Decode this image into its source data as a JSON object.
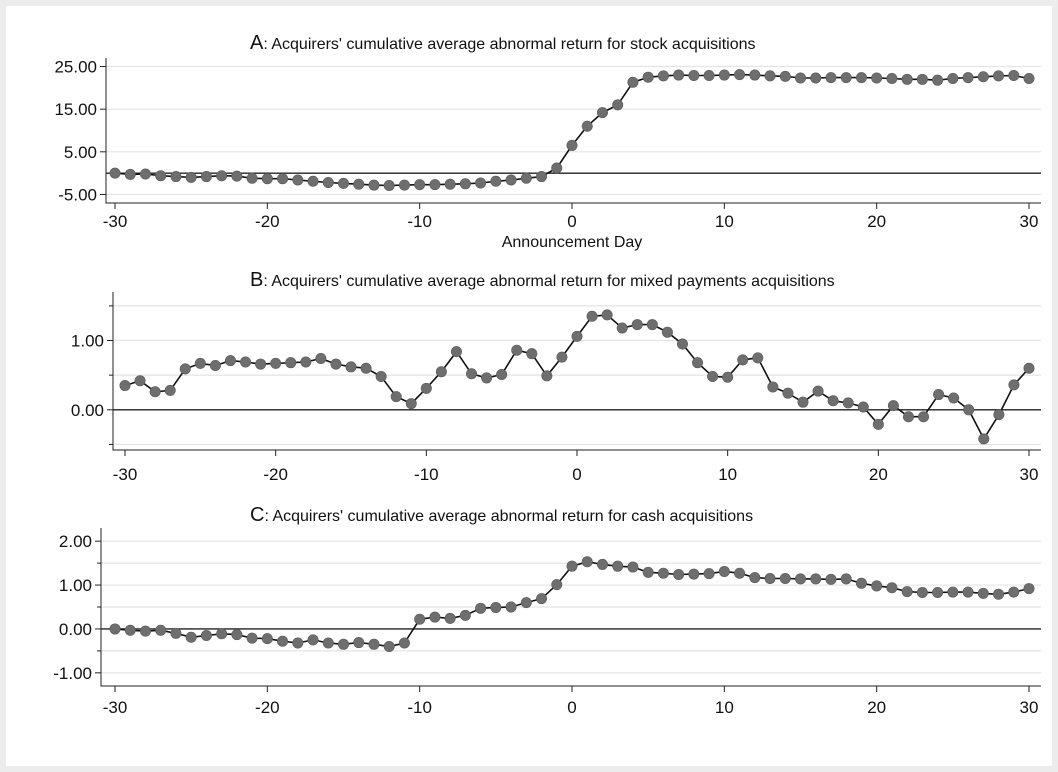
{
  "chart_data": [
    {
      "type": "line",
      "title_letter": "A",
      "title_rest": ": Acquirers' cumulative average abnormal return for stock acquisitions",
      "xlabel": "Announcement Day",
      "ylabel": "",
      "xlim": [
        -30,
        30
      ],
      "ylim": [
        -7,
        27
      ],
      "yticks": [
        "25.00",
        "15.00",
        "5.00",
        "-5.00"
      ],
      "ytick_values": [
        25,
        15,
        5,
        -5
      ],
      "xticks": [
        "-30",
        "-20",
        "-10",
        "0",
        "10",
        "20",
        "30"
      ],
      "xtick_values": [
        -30,
        -20,
        -10,
        0,
        10,
        20,
        30
      ],
      "grid": true,
      "baseline": 0,
      "x": [
        -30,
        -29,
        -28,
        -27,
        -26,
        -25,
        -24,
        -23,
        -22,
        -21,
        -20,
        -19,
        -18,
        -17,
        -16,
        -15,
        -14,
        -13,
        -12,
        -11,
        -10,
        -9,
        -8,
        -7,
        -6,
        -5,
        -4,
        -3,
        -2,
        -1,
        0,
        1,
        2,
        3,
        4,
        5,
        6,
        7,
        8,
        9,
        10,
        11,
        12,
        13,
        14,
        15,
        16,
        17,
        18,
        19,
        20,
        21,
        22,
        23,
        24,
        25,
        26,
        27,
        28,
        29,
        30
      ],
      "values": [
        0.0,
        -0.3,
        -0.2,
        -0.6,
        -0.8,
        -1.0,
        -0.8,
        -0.6,
        -0.7,
        -1.2,
        -1.3,
        -1.3,
        -1.6,
        -1.9,
        -2.2,
        -2.4,
        -2.6,
        -2.8,
        -2.9,
        -2.8,
        -2.7,
        -2.7,
        -2.6,
        -2.5,
        -2.3,
        -1.9,
        -1.6,
        -1.2,
        -0.8,
        1.2,
        6.5,
        11.0,
        14.2,
        16.0,
        21.3,
        22.5,
        22.8,
        23.0,
        22.9,
        22.9,
        23.0,
        23.1,
        23.0,
        22.8,
        22.7,
        22.3,
        22.3,
        22.4,
        22.4,
        22.4,
        22.3,
        22.2,
        22.0,
        22.0,
        21.8,
        22.2,
        22.4,
        22.6,
        22.8,
        22.9,
        22.2
      ]
    },
    {
      "type": "line",
      "title_letter": "B",
      "title_rest": ": Acquirers' cumulative average abnormal return for mixed payments acquisitions",
      "xlabel": "",
      "ylabel": "",
      "xlim": [
        -30,
        30
      ],
      "ylim": [
        -0.58,
        1.7
      ],
      "yticks": [
        "1.00",
        "0.00"
      ],
      "ytick_values": [
        1,
        0
      ],
      "grid_values": [
        1.5,
        1.0,
        0.5,
        0.0,
        -0.5
      ],
      "xticks": [
        "-30",
        "-20",
        "-10",
        "0",
        "10",
        "20",
        "30"
      ],
      "xtick_values": [
        -30,
        -20,
        -10,
        0,
        10,
        20,
        30
      ],
      "grid": true,
      "baseline": 0,
      "x": [
        -30,
        -29,
        -28,
        -27,
        -26,
        -25,
        -24,
        -23,
        -22,
        -21,
        -20,
        -19,
        -18,
        -17,
        -16,
        -15,
        -14,
        -13,
        -12,
        -11,
        -10,
        -9,
        -8,
        -7,
        -6,
        -5,
        -4,
        -3,
        -2,
        -1,
        0,
        1,
        2,
        3,
        4,
        5,
        6,
        7,
        8,
        9,
        10,
        11,
        12,
        13,
        14,
        15,
        16,
        17,
        18,
        19,
        20,
        21,
        22,
        23,
        24,
        25,
        26,
        27,
        28,
        29,
        30
      ],
      "values": [
        0.35,
        0.42,
        0.26,
        0.28,
        0.59,
        0.67,
        0.64,
        0.71,
        0.69,
        0.66,
        0.67,
        0.68,
        0.69,
        0.74,
        0.66,
        0.62,
        0.6,
        0.48,
        0.19,
        0.09,
        0.31,
        0.55,
        0.84,
        0.52,
        0.46,
        0.51,
        0.86,
        0.81,
        0.49,
        0.76,
        1.06,
        1.35,
        1.37,
        1.18,
        1.23,
        1.23,
        1.12,
        0.95,
        0.68,
        0.48,
        0.47,
        0.72,
        0.75,
        0.33,
        0.24,
        0.11,
        0.27,
        0.13,
        0.1,
        0.04,
        -0.21,
        0.06,
        -0.1,
        -0.1,
        0.22,
        0.17,
        0.0,
        -0.42,
        -0.07,
        0.36,
        0.6
      ]
    },
    {
      "type": "line",
      "title_letter": "C",
      "title_rest": ": Acquirers' cumulative average abnormal return for cash acquisitions",
      "xlabel": "",
      "ylabel": "",
      "xlim": [
        -30,
        30
      ],
      "ylim": [
        -1.3,
        2.3
      ],
      "yticks": [
        "2.00",
        "1.00",
        "0.00",
        "-1.00"
      ],
      "ytick_values": [
        2,
        1,
        0,
        -1
      ],
      "grid_values": [
        2.0,
        1.5,
        1.0,
        0.5,
        0.0,
        -0.5,
        -1.0
      ],
      "xticks": [
        "-30",
        "-20",
        "-10",
        "0",
        "10",
        "20",
        "30"
      ],
      "xtick_values": [
        -30,
        -20,
        -10,
        0,
        10,
        20,
        30
      ],
      "grid": true,
      "baseline": 0,
      "x": [
        -30,
        -29,
        -28,
        -27,
        -26,
        -25,
        -24,
        -23,
        -22,
        -21,
        -20,
        -19,
        -18,
        -17,
        -16,
        -15,
        -14,
        -13,
        -12,
        -11,
        -10,
        -9,
        -8,
        -7,
        -6,
        -5,
        -4,
        -3,
        -2,
        -1,
        0,
        1,
        2,
        3,
        4,
        5,
        6,
        7,
        8,
        9,
        10,
        11,
        12,
        13,
        14,
        15,
        16,
        17,
        18,
        19,
        20,
        21,
        22,
        23,
        24,
        25,
        26,
        27,
        28,
        29,
        30
      ],
      "values": [
        0.0,
        -0.03,
        -0.05,
        -0.03,
        -0.1,
        -0.19,
        -0.15,
        -0.11,
        -0.13,
        -0.21,
        -0.22,
        -0.28,
        -0.32,
        -0.25,
        -0.32,
        -0.35,
        -0.31,
        -0.35,
        -0.4,
        -0.32,
        0.22,
        0.27,
        0.24,
        0.31,
        0.47,
        0.49,
        0.5,
        0.6,
        0.69,
        1.01,
        1.43,
        1.53,
        1.47,
        1.43,
        1.41,
        1.29,
        1.27,
        1.24,
        1.25,
        1.26,
        1.31,
        1.27,
        1.17,
        1.15,
        1.15,
        1.14,
        1.14,
        1.13,
        1.14,
        1.04,
        0.98,
        0.94,
        0.85,
        0.83,
        0.83,
        0.84,
        0.84,
        0.81,
        0.79,
        0.84,
        0.92
      ]
    }
  ]
}
